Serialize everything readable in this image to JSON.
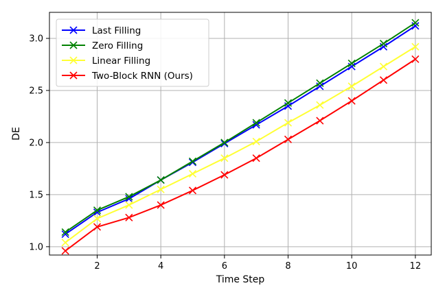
{
  "chart_data": {
    "type": "line",
    "title": "",
    "xlabel": "Time Step",
    "ylabel": "DE",
    "xlim": [
      0.5,
      12.5
    ],
    "ylim": [
      0.92,
      3.25
    ],
    "xticks": [
      2,
      4,
      6,
      8,
      10,
      12
    ],
    "xtick_labels": [
      "2",
      "4",
      "6",
      "8",
      "10",
      "12"
    ],
    "yticks": [
      1.0,
      1.5,
      2.0,
      2.5,
      3.0
    ],
    "ytick_labels": [
      "1.0",
      "1.5",
      "2.0",
      "2.5",
      "3.0"
    ],
    "grid": true,
    "legend_position": "top-left",
    "marker": "x",
    "x": [
      1,
      2,
      3,
      4,
      5,
      6,
      7,
      8,
      9,
      10,
      11,
      12
    ],
    "series": [
      {
        "name": "Last Filling",
        "color": "#0000ff",
        "values": [
          1.12,
          1.33,
          1.46,
          1.64,
          1.81,
          1.99,
          2.17,
          2.35,
          2.54,
          2.73,
          2.92,
          3.12
        ]
      },
      {
        "name": "Zero Filling",
        "color": "#008000",
        "values": [
          1.14,
          1.35,
          1.48,
          1.64,
          1.82,
          2.0,
          2.19,
          2.38,
          2.57,
          2.76,
          2.95,
          3.15
        ]
      },
      {
        "name": "Linear Filling",
        "color": "#ffff33",
        "values": [
          1.04,
          1.27,
          1.4,
          1.55,
          1.7,
          1.85,
          2.01,
          2.19,
          2.36,
          2.54,
          2.73,
          2.92
        ]
      },
      {
        "name": "Two-Block RNN (Ours)",
        "color": "#ff0000",
        "values": [
          0.96,
          1.19,
          1.28,
          1.4,
          1.54,
          1.69,
          1.85,
          2.03,
          2.21,
          2.4,
          2.6,
          2.8
        ]
      }
    ]
  }
}
